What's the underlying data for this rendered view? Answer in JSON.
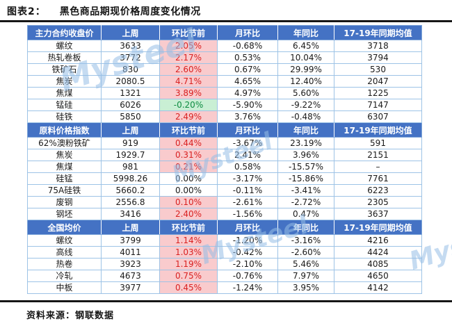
{
  "title": {
    "label": "图表2：",
    "text": "黑色商品期现价格周度变化情况"
  },
  "source": "资料来源：钢联数据",
  "watermark": "Mysteel",
  "colors": {
    "header_bg": "#4472C4",
    "header_text": "#FFFFFF",
    "positive_bg": "#F9CBCD",
    "positive_text": "#D92121",
    "negative_bg": "#C9EFD4",
    "negative_text": "#0E8C40",
    "grid_border": "#9DC3E6",
    "rule": "#161616",
    "watermark": "#96BEE6"
  },
  "table": {
    "columns": [
      "上周",
      "环比节前",
      "月环比",
      "年同比",
      "17-19年同期均值"
    ],
    "highlight_column_note": "环比节前 column: red/pink when >0, green when <0, plain when 0",
    "sections": [
      {
        "header": "主力合约收盘价",
        "rows": [
          [
            "螺纹",
            "3633",
            "2.05%",
            "-0.68%",
            "6.45%",
            "3718"
          ],
          [
            "热轧卷板",
            "3772",
            "2.17%",
            "0.53%",
            "10.04%",
            "3794"
          ],
          [
            "铁矿石",
            "830",
            "2.60%",
            "0.67%",
            "29.99%",
            "530"
          ],
          [
            "焦炭",
            "2080.5",
            "4.71%",
            "4.65%",
            "12.40%",
            "2047"
          ],
          [
            "焦煤",
            "1321",
            "3.89%",
            "4.97%",
            "5.60%",
            "1225"
          ],
          [
            "锰硅",
            "6026",
            "-0.20%",
            "-5.90%",
            "-9.22%",
            "7147"
          ],
          [
            "硅铁",
            "5850",
            "2.49%",
            "3.76%",
            "-0.48%",
            "6307"
          ]
        ]
      },
      {
        "header": "原料价格指数",
        "rows": [
          [
            "62%澳粉铁矿",
            "919",
            "0.44%",
            "-3.67%",
            "23.19%",
            "591"
          ],
          [
            "焦炭",
            "1929.7",
            "0.31%",
            "2.41%",
            "3.96%",
            "2151"
          ],
          [
            "焦煤",
            "981",
            "0.21%",
            "0.58%",
            "-15.57%",
            "–"
          ],
          [
            "硅锰",
            "5998.26",
            "0.00%",
            "-3.17%",
            "-15.86%",
            "7761"
          ],
          [
            "75A硅铁",
            "5660.2",
            "0.00%",
            "-0.11%",
            "-3.41%",
            "6223"
          ],
          [
            "废钢",
            "2556.8",
            "0.10%",
            "-2.61%",
            "-2.72%",
            "2305"
          ],
          [
            "钢坯",
            "3416",
            "2.40%",
            "-1.56%",
            "0.47%",
            "3637"
          ]
        ]
      },
      {
        "header": "全国均价",
        "rows": [
          [
            "螺纹",
            "3799",
            "1.14%",
            "-1.20%",
            "-3.16%",
            "4216"
          ],
          [
            "高线",
            "4011",
            "1.03%",
            "-0.42%",
            "-2.60%",
            "4424"
          ],
          [
            "热卷",
            "3923",
            "1.19%",
            "-2.10%",
            "5.46%",
            "4085"
          ],
          [
            "冷轧",
            "4673",
            "0.75%",
            "-0.76%",
            "7.97%",
            "4650"
          ],
          [
            "中板",
            "3977",
            "0.45%",
            "-1.24%",
            "3.95%",
            "4142"
          ]
        ]
      }
    ]
  }
}
